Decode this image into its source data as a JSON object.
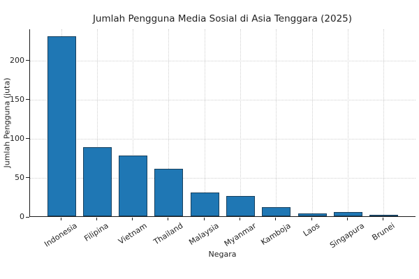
{
  "figure": {
    "background": "#ffffff"
  },
  "chart_data": {
    "type": "bar",
    "title": "Jumlah Pengguna Media Sosial di Asia Tenggara (2025)",
    "xlabel": "Negara",
    "ylabel": "Jumlah Pengguna (juta)",
    "categories": [
      "Indonesia",
      "Filipina",
      "Vietnam",
      "Thailand",
      "Malaysia",
      "Myanmar",
      "Kamboja",
      "Laos",
      "Singapura",
      "Brunei"
    ],
    "values": [
      230,
      88,
      78,
      61,
      30,
      26,
      12,
      3.5,
      5.5,
      0.5
    ],
    "yticks": [
      0,
      50,
      100,
      150,
      200
    ],
    "ylim": [
      0,
      240
    ],
    "grid": true,
    "grid_linestyle": "dotted",
    "legend_position": "none",
    "x_tick_rotation_deg": 33,
    "colors": {
      "bar_fill": "#1f77b4",
      "bar_edge": "#17405e",
      "axis": "#1a1a1a",
      "grid": "#cfcfcf",
      "text": "#1f1f1f",
      "background": "#ffffff"
    }
  }
}
